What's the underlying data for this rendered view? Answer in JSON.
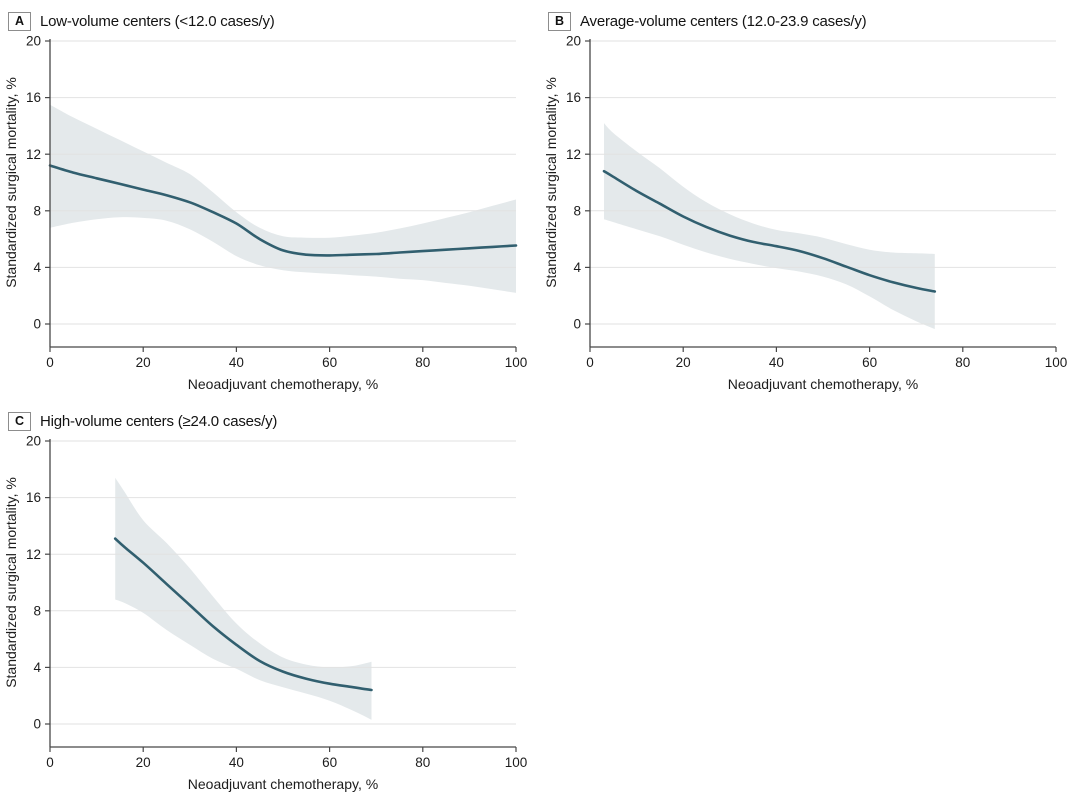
{
  "figure": {
    "background": "#ffffff",
    "x_axis_label": "Neoadjuvant chemotherapy, %",
    "y_axis_label": "Standardized surgical mortality, %"
  },
  "colors": {
    "line": "#315f6f",
    "band": "#e4e9eb",
    "grid": "#e2e2e2",
    "axis": "#474747",
    "text": "#1c1c1c"
  },
  "chart_data": [
    {
      "type": "line",
      "badge": "A",
      "title": "Low-volume centers (<12.0 cases/y)",
      "xlabel": "Neoadjuvant chemotherapy, %",
      "ylabel": "Standardized surgical mortality, %",
      "xlim": [
        0,
        100
      ],
      "ylim": [
        0,
        20
      ],
      "x_ticks": [
        0,
        20,
        40,
        60,
        80,
        100
      ],
      "y_ticks": [
        0,
        4,
        8,
        12,
        16,
        20
      ],
      "grid": "horizontal",
      "legend": "none",
      "series": [
        {
          "name": "Smoothed standardized mortality",
          "x": [
            0,
            5,
            10,
            15,
            20,
            25,
            30,
            35,
            40,
            45,
            50,
            55,
            60,
            65,
            70,
            75,
            80,
            85,
            90,
            95,
            100
          ],
          "y": [
            11.2,
            10.7,
            10.3,
            9.9,
            9.5,
            9.1,
            8.6,
            7.9,
            7.1,
            6.0,
            5.2,
            4.9,
            4.85,
            4.9,
            4.95,
            5.05,
            5.15,
            5.25,
            5.35,
            5.45,
            5.55
          ]
        }
      ],
      "band": {
        "name": "95% CI",
        "x": [
          0,
          5,
          10,
          15,
          20,
          25,
          30,
          35,
          40,
          45,
          50,
          55,
          60,
          65,
          70,
          75,
          80,
          85,
          90,
          95,
          100
        ],
        "upper": [
          15.5,
          14.6,
          13.8,
          13.0,
          12.2,
          11.4,
          10.6,
          9.3,
          7.9,
          6.8,
          6.2,
          6.1,
          6.1,
          6.25,
          6.45,
          6.75,
          7.1,
          7.5,
          7.9,
          8.35,
          8.8
        ],
        "lower": [
          6.8,
          7.15,
          7.4,
          7.55,
          7.5,
          7.3,
          6.7,
          5.8,
          4.8,
          4.15,
          3.8,
          3.65,
          3.55,
          3.45,
          3.35,
          3.2,
          3.1,
          2.9,
          2.7,
          2.45,
          2.2
        ]
      }
    },
    {
      "type": "line",
      "badge": "B",
      "title": "Average-volume centers (12.0-23.9 cases/y)",
      "xlabel": "Neoadjuvant chemotherapy, %",
      "ylabel": "Standardized surgical mortality, %",
      "xlim": [
        0,
        100
      ],
      "ylim": [
        0,
        20
      ],
      "x_ticks": [
        0,
        20,
        40,
        60,
        80,
        100
      ],
      "y_ticks": [
        0,
        4,
        8,
        12,
        16,
        20
      ],
      "grid": "horizontal",
      "legend": "none",
      "series": [
        {
          "name": "Smoothed standardized mortality",
          "x": [
            3,
            5,
            10,
            15,
            20,
            25,
            30,
            35,
            40,
            45,
            50,
            55,
            60,
            65,
            70,
            74
          ],
          "y": [
            10.8,
            10.4,
            9.4,
            8.5,
            7.6,
            6.85,
            6.25,
            5.8,
            5.5,
            5.15,
            4.65,
            4.05,
            3.45,
            2.95,
            2.55,
            2.3
          ]
        }
      ],
      "band": {
        "name": "95% CI",
        "x": [
          3,
          5,
          10,
          15,
          20,
          25,
          30,
          35,
          40,
          45,
          50,
          55,
          60,
          65,
          70,
          74
        ],
        "upper": [
          14.2,
          13.5,
          12.2,
          11.0,
          9.7,
          8.6,
          7.75,
          7.1,
          6.65,
          6.4,
          6.1,
          5.65,
          5.25,
          5.05,
          5.0,
          4.95
        ],
        "lower": [
          7.4,
          7.2,
          6.7,
          6.2,
          5.6,
          5.05,
          4.6,
          4.25,
          3.95,
          3.7,
          3.35,
          2.8,
          1.95,
          1.0,
          0.2,
          -0.35
        ]
      }
    },
    {
      "type": "line",
      "badge": "C",
      "title": "High-volume centers (≥24.0 cases/y)",
      "xlabel": "Neoadjuvant chemotherapy, %",
      "ylabel": "Standardized surgical mortality, %",
      "xlim": [
        0,
        100
      ],
      "ylim": [
        0,
        20
      ],
      "x_ticks": [
        0,
        20,
        40,
        60,
        80,
        100
      ],
      "y_ticks": [
        0,
        4,
        8,
        12,
        16,
        20
      ],
      "grid": "horizontal",
      "legend": "none",
      "series": [
        {
          "name": "Smoothed standardized mortality",
          "x": [
            14,
            16,
            20,
            25,
            30,
            35,
            40,
            45,
            50,
            55,
            60,
            65,
            69
          ],
          "y": [
            13.1,
            12.5,
            11.4,
            9.9,
            8.4,
            6.9,
            5.6,
            4.45,
            3.7,
            3.2,
            2.85,
            2.6,
            2.4
          ]
        }
      ],
      "band": {
        "name": "95% CI",
        "x": [
          14,
          16,
          20,
          25,
          30,
          35,
          40,
          45,
          50,
          55,
          60,
          65,
          69
        ],
        "upper": [
          17.4,
          16.4,
          14.4,
          12.8,
          11.0,
          9.0,
          7.1,
          5.7,
          4.7,
          4.2,
          4.0,
          4.1,
          4.4
        ],
        "lower": [
          8.8,
          8.55,
          7.85,
          6.65,
          5.6,
          4.6,
          3.9,
          3.1,
          2.6,
          2.15,
          1.65,
          0.95,
          0.3
        ]
      }
    }
  ]
}
